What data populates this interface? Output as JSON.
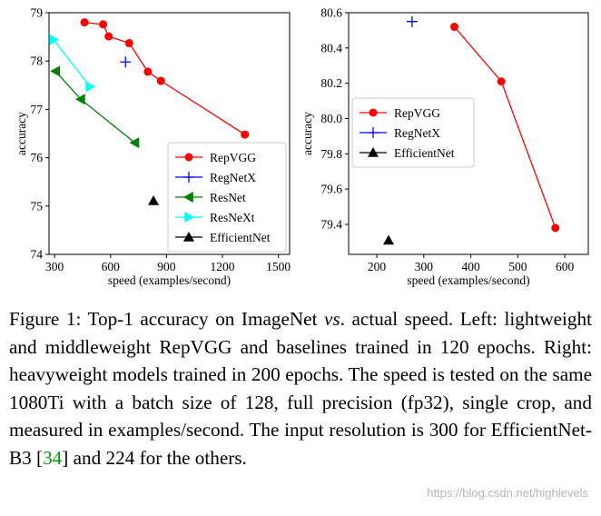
{
  "chart_data": [
    {
      "type": "line",
      "title": "",
      "xlabel": "speed (examples/second)",
      "ylabel": "accuracy",
      "xlim": [
        270,
        1560
      ],
      "ylim": [
        74,
        79
      ],
      "xticks": [
        300,
        600,
        900,
        1200,
        1500
      ],
      "yticks": [
        74,
        75,
        76,
        77,
        78,
        79
      ],
      "legend_position": "lower-right",
      "series": [
        {
          "name": "RepVGG",
          "color": "#ff0000",
          "marker": "circle",
          "line": true,
          "points": [
            [
              460,
              78.8
            ],
            [
              560,
              78.76
            ],
            [
              590,
              78.51
            ],
            [
              700,
              78.37
            ],
            [
              800,
              77.78
            ],
            [
              870,
              77.59
            ],
            [
              1320,
              76.48
            ]
          ]
        },
        {
          "name": "RegNetX",
          "color": "#0000ff",
          "marker": "plus",
          "line": true,
          "points": [
            [
              680,
              77.98
            ]
          ]
        },
        {
          "name": "ResNet",
          "color": "#008000",
          "marker": "triangle-left",
          "line": true,
          "points": [
            [
              305,
              77.79
            ],
            [
              440,
              77.21
            ],
            [
              730,
              76.31
            ]
          ]
        },
        {
          "name": "ResNeXt",
          "color": "#00ffff",
          "marker": "triangle-right",
          "line": true,
          "points": [
            [
              295,
              78.44
            ],
            [
              490,
              77.47
            ]
          ]
        },
        {
          "name": "EfficientNet",
          "color": "#000000",
          "marker": "triangle-up",
          "line": true,
          "points": [
            [
              830,
              75.11
            ]
          ]
        }
      ]
    },
    {
      "type": "line",
      "title": "",
      "xlabel": "speed (examples/second)",
      "ylabel": "accuracy",
      "xlim": [
        140,
        650
      ],
      "ylim": [
        79.23,
        80.6
      ],
      "xticks": [
        200,
        300,
        400,
        500,
        600
      ],
      "yticks": [
        79.4,
        79.6,
        79.8,
        80.0,
        80.2,
        80.4,
        80.6
      ],
      "legend_position": "center-left",
      "series": [
        {
          "name": "RepVGG",
          "color": "#ff0000",
          "marker": "circle",
          "line": true,
          "points": [
            [
              365,
              80.52
            ],
            [
              465,
              80.21
            ],
            [
              580,
              79.38
            ]
          ]
        },
        {
          "name": "RegNetX",
          "color": "#0000ff",
          "marker": "plus",
          "line": true,
          "points": [
            [
              275,
              80.55
            ]
          ]
        },
        {
          "name": "EfficientNet",
          "color": "#000000",
          "marker": "triangle-up",
          "line": true,
          "points": [
            [
              225,
              79.31
            ]
          ]
        }
      ]
    }
  ],
  "caption": {
    "label": "Figure 1:",
    "text_1": " Top-1 accuracy on ImageNet ",
    "vs": "vs",
    "text_2": ". actual speed. Left: lightweight and middleweight RepVGG and baselines trained in 120 epochs. Right: heavyweight models trained in 200 epochs. The speed is tested on the same 1080Ti with a batch size of 128, full precision (fp32), single crop, and measured in examples/second. The input resolution is 300 for EfficientNet-B3 [",
    "ref": "34",
    "text_3": "] and 224 for the others."
  },
  "watermark": "https://blog.csdn.net/highlevels"
}
